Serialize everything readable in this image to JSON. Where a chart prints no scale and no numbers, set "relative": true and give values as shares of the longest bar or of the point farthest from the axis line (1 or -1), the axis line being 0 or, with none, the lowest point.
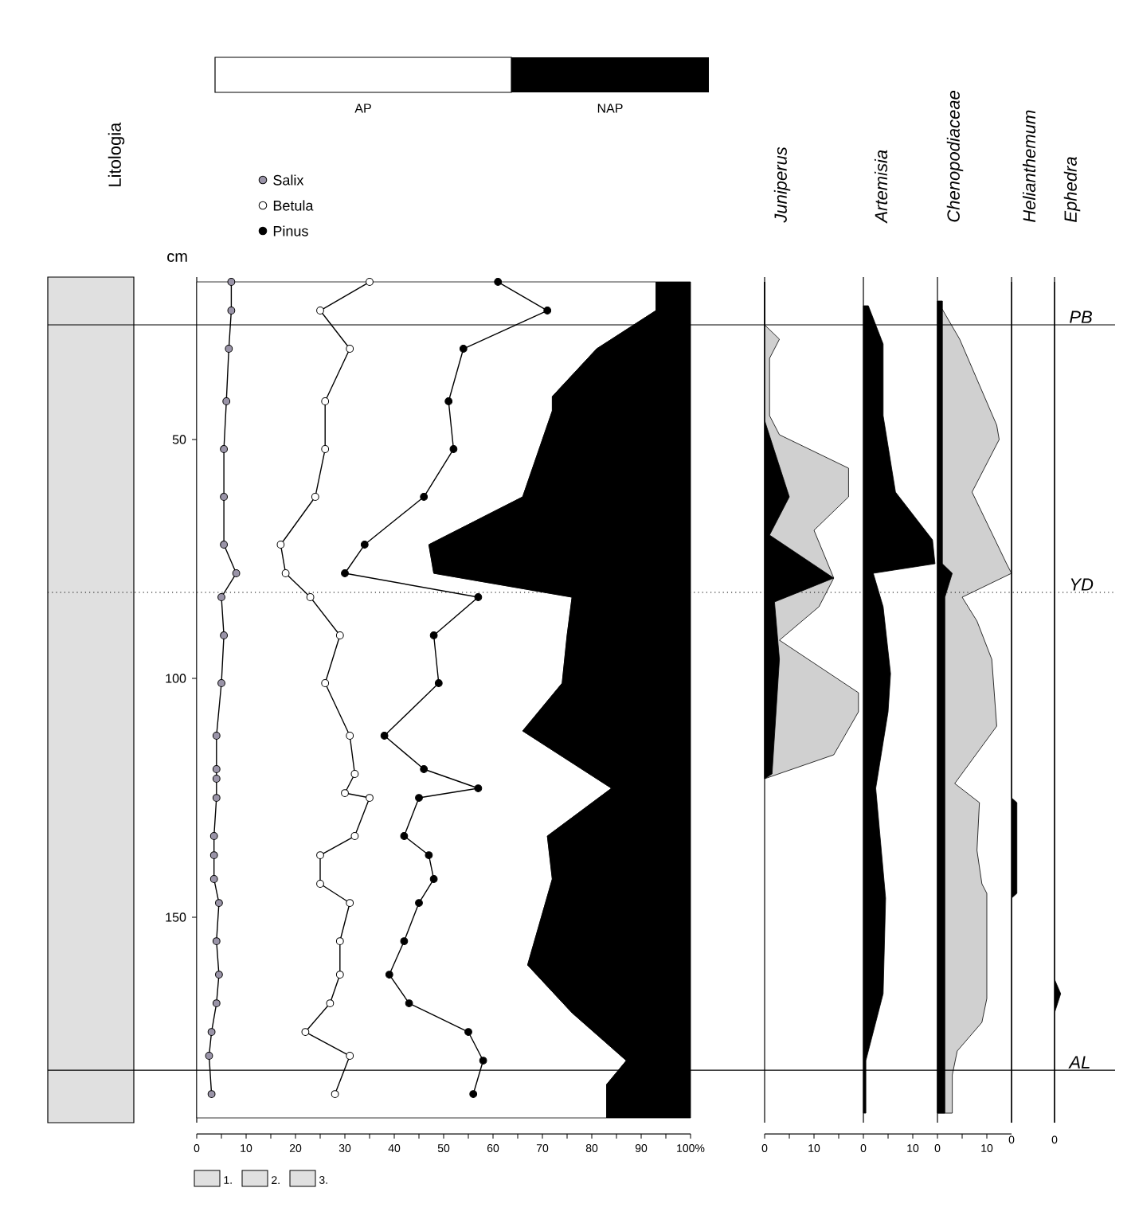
{
  "chart_data": [
    {
      "type": "line",
      "orientation": "horizontal",
      "stacked": true,
      "legend": "top",
      "ylabel": "cm",
      "xlim": [
        0,
        100
      ],
      "ylim": [
        193,
        16
      ],
      "yticks": [
        50,
        100,
        150
      ],
      "annotations": [
        "Litologia",
        "1.",
        "2.",
        "3.",
        "AP",
        "NAP"
      ],
      "xticks": [
        0,
        {
          "value": 5,
          "label": null
        },
        10,
        {
          "value": 15,
          "label": null
        },
        20,
        {
          "value": 25,
          "label": null
        },
        30,
        {
          "value": 35,
          "label": null
        },
        40,
        {
          "value": 45,
          "label": null
        },
        50,
        {
          "value": 55,
          "label": null
        },
        60,
        {
          "value": 65,
          "label": null
        },
        70,
        {
          "value": 75,
          "label": null
        },
        80,
        {
          "value": 85,
          "label": null
        },
        90,
        {
          "value": 95,
          "label": null
        },
        {
          "value": 100,
          "label": "100%"
        }
      ],
      "series": [
        {
          "type": "area",
          "color": "#ffffff",
          "x": [
            17,
            23,
            31,
            41,
            44,
            62,
            72,
            78,
            83,
            91,
            101,
            111,
            123,
            133,
            142,
            160,
            170,
            180,
            185,
            192
          ],
          "values": [
            93,
            93,
            81,
            72,
            72,
            66,
            47,
            48,
            76,
            75,
            74,
            66,
            84,
            71,
            72,
            67,
            76,
            87,
            83,
            83
          ]
        },
        {
          "type": "area",
          "color": "#000000",
          "x": [
            17,
            23,
            31,
            41,
            44,
            62,
            72,
            78,
            83,
            91,
            101,
            111,
            123,
            133,
            142,
            160,
            170,
            180,
            185,
            192
          ],
          "values": [
            7,
            7,
            19,
            28,
            28,
            34,
            53,
            52,
            24,
            25,
            26,
            34,
            16,
            29,
            28,
            33,
            24,
            13,
            17,
            17
          ]
        },
        {
          "name": "Salix",
          "marker": "circle",
          "color": "#9a94a8",
          "x": [
            17,
            23,
            31,
            42,
            52,
            62,
            72,
            78,
            83,
            91,
            101,
            112,
            119,
            121,
            125,
            133,
            137,
            142,
            147,
            155,
            162,
            168,
            174,
            179,
            187
          ],
          "values": [
            7,
            7,
            6.5,
            6,
            5.5,
            5.5,
            5.5,
            8,
            5,
            5.5,
            5,
            4,
            4,
            4,
            4,
            3.5,
            3.5,
            3.5,
            4.5,
            4,
            4.5,
            4,
            3,
            2.5,
            3
          ]
        },
        {
          "name": "Betula",
          "marker": "circle",
          "color": "#ffffff",
          "x": [
            17,
            23,
            31,
            42,
            52,
            62,
            72,
            78,
            83,
            91,
            101,
            112,
            120,
            124,
            125,
            133,
            137,
            143,
            147,
            155,
            162,
            168,
            174,
            179,
            187
          ],
          "values": [
            35,
            25,
            31,
            26,
            26,
            24,
            17,
            18,
            23,
            29,
            26,
            31,
            32,
            30,
            35,
            32,
            25,
            25,
            31,
            29,
            29,
            27,
            22,
            31,
            28
          ]
        },
        {
          "name": "Pinus",
          "marker": "circle",
          "color": "#000000",
          "x": [
            17,
            23,
            31,
            42,
            52,
            62,
            72,
            78,
            83,
            91,
            101,
            112,
            119,
            123,
            125,
            133,
            137,
            142,
            147,
            155,
            162,
            168,
            174,
            180,
            187
          ],
          "values": [
            61,
            71,
            54,
            51,
            52,
            46,
            34,
            30,
            57,
            48,
            49,
            38,
            46,
            57,
            45,
            42,
            47,
            48,
            45,
            42,
            39,
            43,
            55,
            58,
            56
          ]
        }
      ]
    },
    {
      "type": "area",
      "orientation": "horizontal",
      "title": "Juniperus",
      "tick_labels": "x",
      "xlim": [
        0,
        20
      ],
      "ylim": [
        193,
        16
      ],
      "xticks": [
        0,
        {
          "value": 5,
          "label": null
        },
        10,
        {
          "value": 15,
          "label": null
        }
      ],
      "series": [
        {
          "color": "#d0d0d0",
          "x": [
            17,
            26,
            29,
            33,
            45,
            49,
            56,
            62,
            69,
            74,
            79,
            85,
            92,
            103,
            107,
            116,
            121
          ],
          "values": [
            0,
            0,
            3,
            1,
            1,
            3,
            17,
            17,
            10,
            12,
            14,
            11,
            3,
            19,
            19,
            14,
            0
          ]
        },
        {
          "color": "#000000",
          "x": [
            17,
            46,
            62,
            70,
            79,
            84,
            96,
            120,
            121
          ],
          "values": [
            0,
            0,
            5,
            1,
            14,
            2,
            3,
            1.5,
            0
          ]
        }
      ]
    },
    {
      "type": "area",
      "orientation": "horizontal",
      "title": "Artemisia",
      "tick_labels": "x",
      "xlim": [
        0,
        15
      ],
      "ylim": [
        193,
        16
      ],
      "xticks": [
        0,
        {
          "value": 5,
          "label": null
        },
        10
      ],
      "series": [
        {
          "color": "#000000",
          "x": [
            22,
            30,
            45,
            61,
            71,
            76,
            78,
            85,
            99,
            107,
            123,
            146,
            166,
            174,
            180,
            191
          ],
          "values": [
            1,
            4,
            4,
            6.5,
            14,
            14.5,
            2,
            4,
            5.5,
            5,
            2.5,
            4.5,
            4,
            2,
            0.5,
            0.5
          ]
        }
      ]
    },
    {
      "type": "area",
      "orientation": "horizontal",
      "title": "Chenopodiaceae",
      "tick_labels": "x",
      "xlim": [
        0,
        15
      ],
      "ylim": [
        193,
        16
      ],
      "xticks": [
        0,
        {
          "value": 5,
          "label": null
        },
        10
      ],
      "series": [
        {
          "color": "#d0d0d0",
          "x": [
            21,
            29,
            47,
            50,
            61,
            76,
            78,
            83,
            88,
            96,
            110,
            122,
            126,
            136,
            143,
            145,
            167,
            172,
            178,
            183,
            191
          ],
          "values": [
            0,
            4.5,
            12,
            12.5,
            7,
            14,
            15,
            5,
            8,
            11,
            12,
            3.5,
            8.5,
            8,
            9,
            10,
            10,
            9,
            4,
            3,
            3
          ]
        },
        {
          "color": "#000000",
          "x": [
            21,
            76,
            78,
            83,
            191
          ],
          "values": [
            1,
            1,
            3,
            1.5,
            1.5
          ]
        }
      ]
    },
    {
      "type": "area",
      "orientation": "horizontal",
      "relative": true,
      "title": "Helianthemum",
      "annotations": [
        "0"
      ],
      "ylim": [
        193,
        16
      ],
      "series": [
        {
          "color": "#000000",
          "x": [
            17,
            125,
            126,
            145,
            146,
            193
          ],
          "values": [
            0,
            0,
            1,
            1,
            0,
            0
          ]
        }
      ]
    },
    {
      "type": "area",
      "orientation": "horizontal",
      "relative": true,
      "title": "Ephedra",
      "annotations": [
        "0"
      ],
      "ylim": [
        193,
        16
      ],
      "ref_lines": [
        {
          "axis": "y",
          "value": 26,
          "label": "PB"
        },
        {
          "axis": "y",
          "value": 82,
          "label": "YD",
          "line_style": "dotted"
        },
        {
          "axis": "y",
          "value": 182,
          "label": "AL"
        }
      ],
      "series": [
        {
          "color": "#000000",
          "x": [
            17,
            163,
            166,
            170,
            193
          ],
          "values": [
            0,
            0,
            1,
            0,
            0
          ]
        }
      ]
    }
  ]
}
